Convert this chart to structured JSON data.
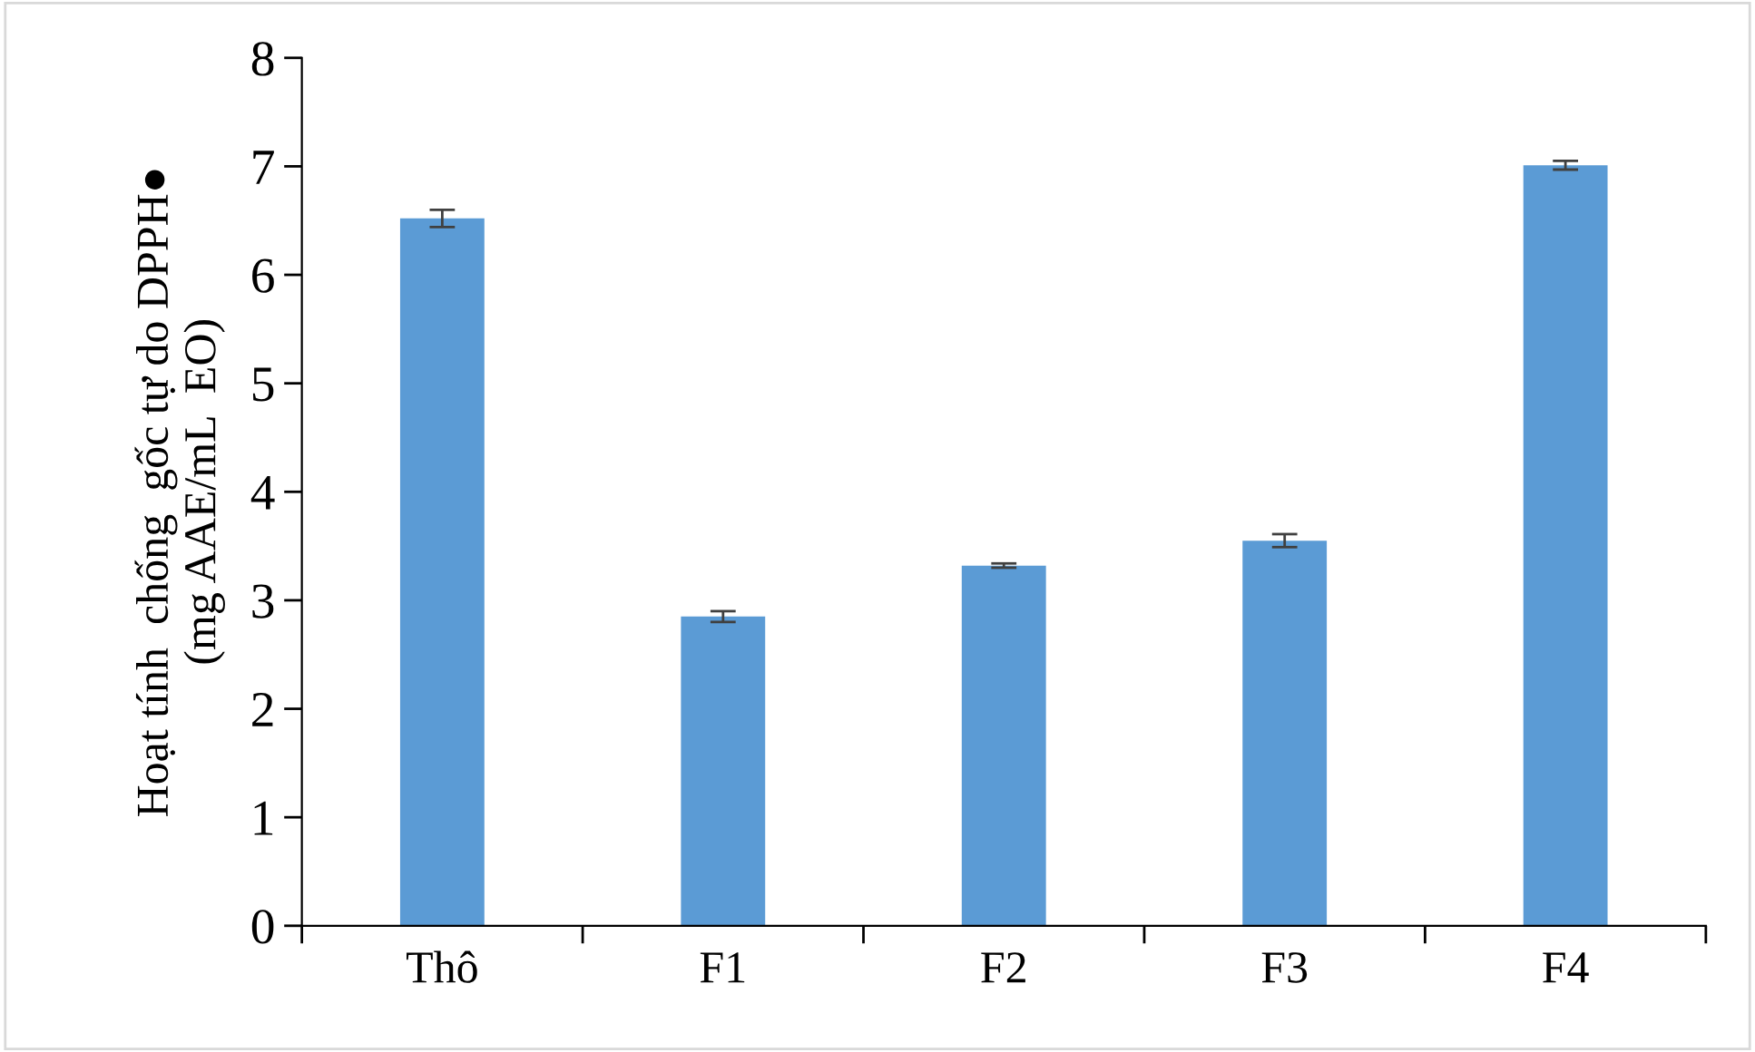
{
  "chart_data": {
    "type": "bar",
    "ylabel": "Hoạt tính  chống  gốc tự do DPPH●\n(mg AAE/mL  EO)",
    "categories": [
      "Thô",
      "F1",
      "F2",
      "F3",
      "F4"
    ],
    "values": [
      6.52,
      2.85,
      3.32,
      3.55,
      7.01
    ],
    "errors": [
      0.08,
      0.05,
      0.02,
      0.06,
      0.04
    ],
    "color": "#5b9bd5",
    "ylim": [
      0,
      8
    ],
    "yticks": [
      0,
      1,
      2,
      3,
      4,
      5,
      6,
      7,
      8
    ],
    "grid": false,
    "legend": false
  }
}
